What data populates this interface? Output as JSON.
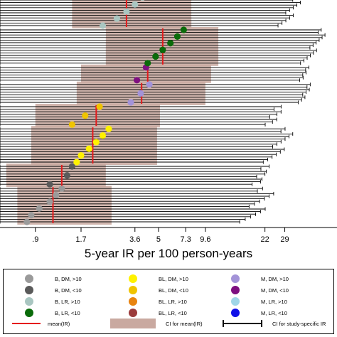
{
  "chart_data": {
    "type": "forest",
    "xlabel": "5-year IR per 100 person-years",
    "xscale": "log",
    "xlim": [
      0.55,
      60
    ],
    "xticks": [
      {
        "value": 0.9,
        "label": ".9"
      },
      {
        "value": 1.7,
        "label": "1.7"
      },
      {
        "value": 3.6,
        "label": "3.6"
      },
      {
        "value": 5,
        "label": "5"
      },
      {
        "value": 7.3,
        "label": "7.3"
      },
      {
        "value": 9.6,
        "label": "9.6"
      },
      {
        "value": 22,
        "label": "22"
      },
      {
        "value": 29,
        "label": "29"
      }
    ],
    "series": [
      {
        "name": "B, DM, >10",
        "color": "#9a9a9a",
        "mean": 1.15,
        "ci": [
          0.7,
          2.6
        ],
        "studies": [
          {
            "ir": 0.8,
            "lo": 0.05,
            "hi": 18
          },
          {
            "ir": 0.85,
            "lo": 0.05,
            "hi": 19
          },
          {
            "ir": 0.95,
            "lo": 0.06,
            "hi": 20
          },
          {
            "ir": 1.1,
            "lo": 0.06,
            "hi": 21
          },
          {
            "ir": 1.2,
            "lo": 0.07,
            "hi": 22
          },
          {
            "ir": 1.3,
            "lo": 0.07,
            "hi": 23
          }
        ]
      },
      {
        "name": "B, DM, <10",
        "color": "#5a5a5a",
        "mean": 1.3,
        "ci": [
          0.6,
          2.4
        ],
        "studies": [
          {
            "ir": 1.1,
            "lo": 0.06,
            "hi": 20
          },
          {
            "ir": 1.4,
            "lo": 0.07,
            "hi": 22
          },
          {
            "ir": 1.5,
            "lo": 0.07,
            "hi": 22
          }
        ]
      },
      {
        "name": "BL, DM, >10",
        "color": "#fff200",
        "mean": 2.0,
        "ci": [
          0.85,
          4.9
        ],
        "studies": [
          {
            "ir": 1.6,
            "lo": 0.1,
            "hi": 25
          },
          {
            "ir": 1.7,
            "lo": 0.1,
            "hi": 26
          },
          {
            "ir": 1.9,
            "lo": 0.12,
            "hi": 27
          },
          {
            "ir": 2.1,
            "lo": 0.12,
            "hi": 28
          },
          {
            "ir": 2.3,
            "lo": 0.13,
            "hi": 29
          },
          {
            "ir": 2.5,
            "lo": 0.14,
            "hi": 30
          }
        ]
      },
      {
        "name": "BL, DM, <10",
        "color": "#f0c400",
        "mean": 2.1,
        "ci": [
          0.9,
          5.1
        ],
        "studies": [
          {
            "ir": 1.5,
            "lo": 0.1,
            "hi": 24
          },
          {
            "ir": 1.8,
            "lo": 0.11,
            "hi": 26
          },
          {
            "ir": 2.2,
            "lo": 0.12,
            "hi": 27
          }
        ]
      },
      {
        "name": "M, DM, >10",
        "color": "#a393d8",
        "mean": 3.95,
        "ci": [
          1.6,
          9.6
        ],
        "studies": [
          {
            "ir": 3.4,
            "lo": 0.2,
            "hi": 38
          },
          {
            "ir": 3.9,
            "lo": 0.22,
            "hi": 39
          },
          {
            "ir": 4.4,
            "lo": 0.25,
            "hi": 40
          }
        ]
      },
      {
        "name": "M, DM, <10",
        "color": "#7e1080",
        "mean": 4.3,
        "ci": [
          1.7,
          10.4
        ],
        "studies": [
          {
            "ir": 3.7,
            "lo": 0.2,
            "hi": 38
          },
          {
            "ir": 4.2,
            "lo": 0.22,
            "hi": 39
          }
        ]
      },
      {
        "name": "B, LR, <10",
        "color": "#0a6b0a",
        "mean": 5.3,
        "ci": [
          2.4,
          11.5
        ],
        "studies": [
          {
            "ir": 4.3,
            "lo": 0.25,
            "hi": 42
          },
          {
            "ir": 4.8,
            "lo": 0.28,
            "hi": 43
          },
          {
            "ir": 5.3,
            "lo": 0.3,
            "hi": 44
          },
          {
            "ir": 5.9,
            "lo": 0.32,
            "hi": 45
          },
          {
            "ir": 6.5,
            "lo": 0.35,
            "hi": 46
          },
          {
            "ir": 7.1,
            "lo": 0.38,
            "hi": 47
          }
        ]
      },
      {
        "name": "B, LR, >10",
        "color": "#a9c6c1",
        "mean": 3.2,
        "ci": [
          1.5,
          7.9
        ],
        "studies": [
          {
            "ir": 2.3,
            "lo": 0.1,
            "hi": 30
          },
          {
            "ir": 2.8,
            "lo": 0.12,
            "hi": 31
          },
          {
            "ir": 3.2,
            "lo": 0.13,
            "hi": 32
          },
          {
            "ir": 3.6,
            "lo": 0.14,
            "hi": 33
          },
          {
            "ir": 4.0,
            "lo": 0.15,
            "hi": 34
          }
        ]
      },
      {
        "name": "BL, LR, <10",
        "color": "#9b3b3b",
        "mean": 7.7,
        "ci": [
          3.3,
          21
        ],
        "studies": [
          {
            "ir": 6.6,
            "lo": 0.5,
            "hi": 50
          },
          {
            "ir": 7.5,
            "lo": 0.55,
            "hi": 51
          },
          {
            "ir": 8.2,
            "lo": 0.6,
            "hi": 52
          }
        ]
      },
      {
        "name": "BL, LR, >10",
        "color": "#e88410",
        "mean": 6.3,
        "ci": [
          2.6,
          16
        ],
        "studies": [
          {
            "ir": 4.9,
            "lo": 0.3,
            "hi": 45
          },
          {
            "ir": 5.6,
            "lo": 0.32,
            "hi": 46
          },
          {
            "ir": 6.3,
            "lo": 0.35,
            "hi": 47
          },
          {
            "ir": 7.1,
            "lo": 0.38,
            "hi": 48
          },
          {
            "ir": 7.8,
            "lo": 0.4,
            "hi": 49
          }
        ]
      },
      {
        "name": "M, LR, >10",
        "color": "#9fd6e8",
        "mean": 24,
        "ci": [
          10,
          60
        ],
        "studies": [
          {
            "ir": 19,
            "lo": 0.9,
            "hi": 58
          },
          {
            "ir": 22,
            "lo": 1.0,
            "hi": 59
          },
          {
            "ir": 26,
            "lo": 1.1,
            "hi": 60
          },
          {
            "ir": 29,
            "lo": 1.2,
            "hi": 60
          },
          {
            "ir": 32,
            "lo": 1.3,
            "hi": 60
          }
        ]
      },
      {
        "name": "M, LR, <10",
        "color": "#1010e8",
        "mean": 25,
        "ci": [
          11,
          60
        ],
        "studies": [
          {
            "ir": 21,
            "lo": 1.0,
            "hi": 59
          },
          {
            "ir": 24,
            "lo": 1.1,
            "hi": 60
          },
          {
            "ir": 27,
            "lo": 1.2,
            "hi": 60
          },
          {
            "ir": 30,
            "lo": 1.3,
            "hi": 60
          }
        ]
      }
    ],
    "legend": {
      "position": "bottom",
      "items": [
        {
          "label": "B, DM, >10",
          "color": "#9a9a9a"
        },
        {
          "label": "BL, DM, >10",
          "color": "#fff200"
        },
        {
          "label": "M, DM, >10",
          "color": "#a393d8"
        },
        {
          "label": "B, DM, <10",
          "color": "#5a5a5a"
        },
        {
          "label": "BL, DM, <10",
          "color": "#f0c400"
        },
        {
          "label": "M, DM, <10",
          "color": "#7e1080"
        },
        {
          "label": "B, LR, >10",
          "color": "#a9c6c1"
        },
        {
          "label": "BL, LR, >10",
          "color": "#e88410"
        },
        {
          "label": "M, LR, >10",
          "color": "#9fd6e8"
        },
        {
          "label": "B, LR, <10",
          "color": "#0a6b0a"
        },
        {
          "label": "BL, LR, <10",
          "color": "#9b3b3b"
        },
        {
          "label": "M, LR, <10",
          "color": "#1010e8"
        }
      ],
      "mean_label": "mean(IR)",
      "mean_color": "#e41a1c",
      "ci_mean_label": "CI for mean(IR)",
      "ci_mean_color": "#c9a9a0",
      "ci_study_label": "CI for study-specific IR"
    }
  }
}
